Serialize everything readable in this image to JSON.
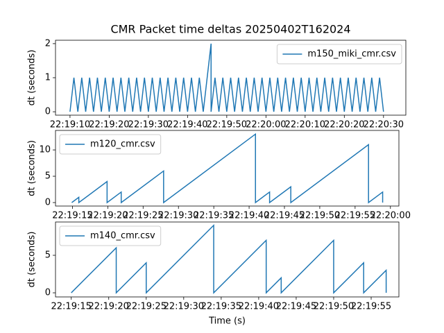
{
  "chart_data": [
    {
      "type": "line",
      "title": "CMR Packet time deltas 20250402T162024",
      "ylabel": "dt (seconds)",
      "legend": "upper right",
      "xlim": [
        "22:19:06.3",
        "22:20:35.7"
      ],
      "ylim": [
        -0.1,
        2.1
      ],
      "xticks": [
        "22:19:10",
        "22:19:20",
        "22:19:30",
        "22:19:40",
        "22:19:50",
        "22:20:00",
        "22:20:10",
        "22:20:20",
        "22:20:30"
      ],
      "yticks": [
        0,
        1,
        2
      ],
      "x": [
        "22:19:10",
        "22:19:11",
        "22:19:12",
        "22:19:13",
        "22:19:14",
        "22:19:15",
        "22:19:16",
        "22:19:17",
        "22:19:18",
        "22:19:19",
        "22:19:20",
        "22:19:21",
        "22:19:22",
        "22:19:23",
        "22:19:24",
        "22:19:25",
        "22:19:26",
        "22:19:27",
        "22:19:28",
        "22:19:29",
        "22:19:30",
        "22:19:31",
        "22:19:32",
        "22:19:33",
        "22:19:34",
        "22:19:35",
        "22:19:36",
        "22:19:37",
        "22:19:38",
        "22:19:39",
        "22:19:40",
        "22:19:41",
        "22:19:42",
        "22:19:43",
        "22:19:44",
        "22:19:46",
        "22:19:46",
        "22:19:47",
        "22:19:48",
        "22:19:49",
        "22:19:50",
        "22:19:51",
        "22:19:52",
        "22:19:53",
        "22:19:54",
        "22:19:55",
        "22:19:56",
        "22:19:57",
        "22:19:58",
        "22:19:59",
        "22:20:00",
        "22:20:01",
        "22:20:02",
        "22:20:03",
        "22:20:04",
        "22:20:05",
        "22:20:06",
        "22:20:07",
        "22:20:08",
        "22:20:09",
        "22:20:10",
        "22:20:11",
        "22:20:12",
        "22:20:13",
        "22:20:14",
        "22:20:15",
        "22:20:16",
        "22:20:17",
        "22:20:18",
        "22:20:19",
        "22:20:20",
        "22:20:21",
        "22:20:22",
        "22:20:23",
        "22:20:24",
        "22:20:25",
        "22:20:26",
        "22:20:27",
        "22:20:28",
        "22:20:29",
        "22:20:30"
      ],
      "series": [
        {
          "name": "m150_miki_cmr.csv",
          "color": "#1f77b4",
          "values": [
            0,
            1,
            0,
            1,
            0,
            1,
            0,
            1,
            0,
            1,
            0,
            1,
            0,
            1,
            0,
            1,
            0,
            1,
            0,
            1,
            0,
            1,
            0,
            1,
            0,
            1,
            0,
            1,
            0,
            1,
            0,
            1,
            0,
            1,
            0,
            2,
            0,
            1,
            0,
            1,
            0,
            1,
            0,
            1,
            0,
            1,
            0,
            1,
            0,
            1,
            0,
            1,
            0,
            1,
            0,
            1,
            0,
            1,
            0,
            1,
            0,
            1,
            0,
            1,
            0,
            1,
            0,
            1,
            0,
            1,
            0,
            1,
            0,
            1,
            0,
            1,
            0,
            1,
            0,
            1,
            0
          ]
        }
      ]
    },
    {
      "type": "line",
      "ylabel": "dt (seconds)",
      "legend": "upper left",
      "xlim": [
        "22:19:12.6",
        "22:20:01.2"
      ],
      "ylim": [
        -0.66,
        13.7
      ],
      "xticks": [
        "22:19:15",
        "22:19:20",
        "22:19:25",
        "22:19:30",
        "22:19:35",
        "22:19:40",
        "22:19:45",
        "22:19:50",
        "22:19:55",
        "22:20:00"
      ],
      "yticks": [
        0,
        5,
        10
      ],
      "x": [
        "22:19:14.9",
        "22:19:15.9",
        "22:19:15.9",
        "22:19:19.9",
        "22:19:19.9",
        "22:19:21.9",
        "22:19:21.9",
        "22:19:27.9",
        "22:19:27.9",
        "22:19:40.9",
        "22:19:40.9",
        "22:19:42.9",
        "22:19:42.9",
        "22:19:45.9",
        "22:19:45.9",
        "22:19:56.9",
        "22:19:56.9",
        "22:19:58.9",
        "22:19:58.9"
      ],
      "series": [
        {
          "name": "m120_cmr.csv",
          "color": "#1f77b4",
          "values": [
            0,
            1,
            0,
            4,
            0,
            2,
            0,
            6,
            0,
            13,
            0,
            2,
            0,
            3,
            0,
            11,
            0,
            2,
            0
          ]
        }
      ]
    },
    {
      "type": "line",
      "ylabel": "dt (seconds)",
      "xlabel": "Time (s)",
      "legend": "upper left",
      "xlim": [
        "22:19:12.9",
        "22:19:58.7"
      ],
      "ylim": [
        -0.55,
        9.44
      ],
      "xticks": [
        "22:19:15",
        "22:19:20",
        "22:19:25",
        "22:19:30",
        "22:19:35",
        "22:19:40",
        "22:19:45",
        "22:19:50",
        "22:19:55"
      ],
      "yticks": [
        0,
        5
      ],
      "x": [
        "22:19:15",
        "22:19:21",
        "22:19:21",
        "22:19:25",
        "22:19:25",
        "22:19:34",
        "22:19:34",
        "22:19:41",
        "22:19:41",
        "22:19:43",
        "22:19:43",
        "22:19:50",
        "22:19:50",
        "22:19:54",
        "22:19:54",
        "22:19:57",
        "22:19:57"
      ],
      "series": [
        {
          "name": "m140_cmr.csv",
          "color": "#1f77b4",
          "values": [
            0,
            6,
            0,
            4,
            0,
            9,
            0,
            7,
            0,
            2,
            0,
            7,
            0,
            4,
            0,
            3,
            0
          ]
        }
      ]
    }
  ]
}
